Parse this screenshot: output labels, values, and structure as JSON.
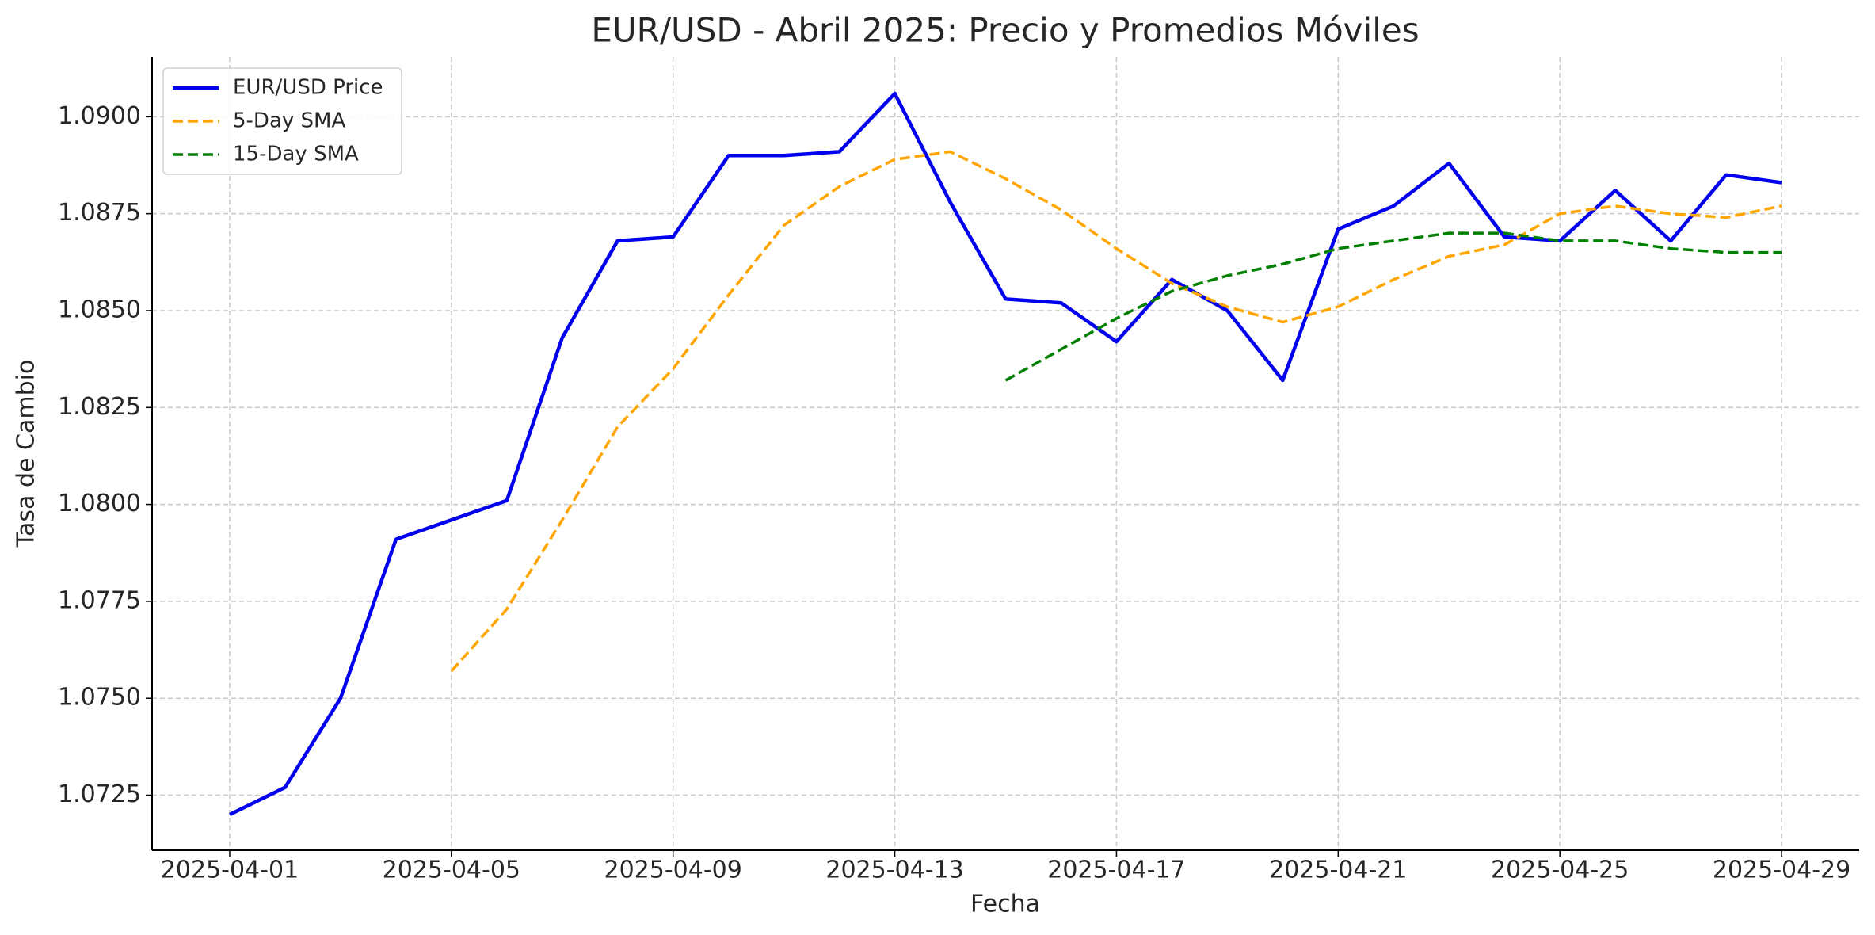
{
  "chart_data": {
    "type": "line",
    "title": "EUR/USD - Abril 2025: Precio y Promedios Móviles",
    "xlabel": "Fecha",
    "ylabel": "Tasa de Cambio",
    "x": [
      "2025-04-01",
      "2025-04-02",
      "2025-04-03",
      "2025-04-04",
      "2025-04-05",
      "2025-04-06",
      "2025-04-07",
      "2025-04-08",
      "2025-04-09",
      "2025-04-10",
      "2025-04-11",
      "2025-04-12",
      "2025-04-13",
      "2025-04-14",
      "2025-04-15",
      "2025-04-16",
      "2025-04-17",
      "2025-04-18",
      "2025-04-19",
      "2025-04-20",
      "2025-04-21",
      "2025-04-22",
      "2025-04-23",
      "2025-04-24",
      "2025-04-25",
      "2025-04-26",
      "2025-04-27",
      "2025-04-28",
      "2025-04-29"
    ],
    "series": [
      {
        "name": "EUR/USD Price",
        "color": "#0000ee",
        "dashed": false,
        "values": [
          1.072,
          1.0727,
          1.075,
          1.0791,
          1.0796,
          1.0801,
          1.0843,
          1.0868,
          1.0869,
          1.089,
          1.089,
          1.0891,
          1.0906,
          1.0878,
          1.0853,
          1.0852,
          1.0842,
          1.0858,
          1.085,
          1.0832,
          1.0871,
          1.0877,
          1.0888,
          1.0869,
          1.0868,
          1.0881,
          1.0868,
          1.0885,
          1.0883
        ]
      },
      {
        "name": "5-Day SMA",
        "color": "#ffa500",
        "dashed": true,
        "values": [
          null,
          null,
          null,
          null,
          1.0757,
          1.0773,
          1.0796,
          1.082,
          1.0835,
          1.0854,
          1.0872,
          1.0882,
          1.0889,
          1.0891,
          1.0884,
          1.0876,
          1.0866,
          1.0857,
          1.0851,
          1.0847,
          1.0851,
          1.0858,
          1.0864,
          1.0867,
          1.0875,
          1.0877,
          1.0875,
          1.0874,
          1.0877
        ]
      },
      {
        "name": "15-Day SMA",
        "color": "#008000",
        "dashed": true,
        "values": [
          null,
          null,
          null,
          null,
          null,
          null,
          null,
          null,
          null,
          null,
          null,
          null,
          null,
          null,
          1.0832,
          1.084,
          1.0848,
          1.0855,
          1.0859,
          1.0862,
          1.0866,
          1.0868,
          1.087,
          1.087,
          1.0868,
          1.0868,
          1.0866,
          1.0865,
          1.0865
        ]
      }
    ],
    "xticks": [
      "2025-04-01",
      "2025-04-05",
      "2025-04-09",
      "2025-04-13",
      "2025-04-17",
      "2025-04-21",
      "2025-04-25",
      "2025-04-29"
    ],
    "ylim": [
      1.07108,
      1.09154
    ],
    "yticks": [
      1.0725,
      {
        "value": 1.075,
        "label": "1.0750"
      },
      1.0775,
      {
        "value": 1.08,
        "label": "1.0800"
      },
      1.0825,
      {
        "value": 1.085,
        "label": "1.0850"
      },
      1.0875,
      {
        "value": 1.09,
        "label": "1.0900"
      }
    ],
    "grid": true,
    "legend": "upper left"
  }
}
